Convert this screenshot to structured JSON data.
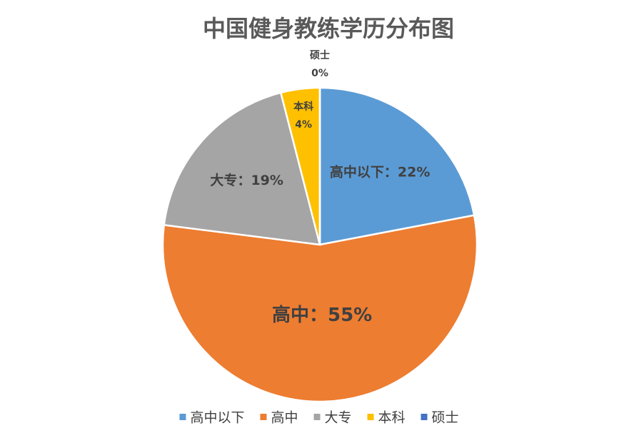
{
  "chart_data": {
    "type": "pie",
    "title": "中国健身教练学历分布图",
    "categories": [
      "高中以下",
      "高中",
      "大专",
      "本科",
      "硕士"
    ],
    "values": [
      22,
      55,
      19,
      4,
      0
    ],
    "value_labels": [
      "22%",
      "55%",
      "19%",
      "4%",
      "0%"
    ],
    "label_separator": "：",
    "colors": [
      "#5b9bd5",
      "#ed7d31",
      "#a5a5a5",
      "#ffc000",
      "#4472c4"
    ],
    "legend": "bottom"
  }
}
